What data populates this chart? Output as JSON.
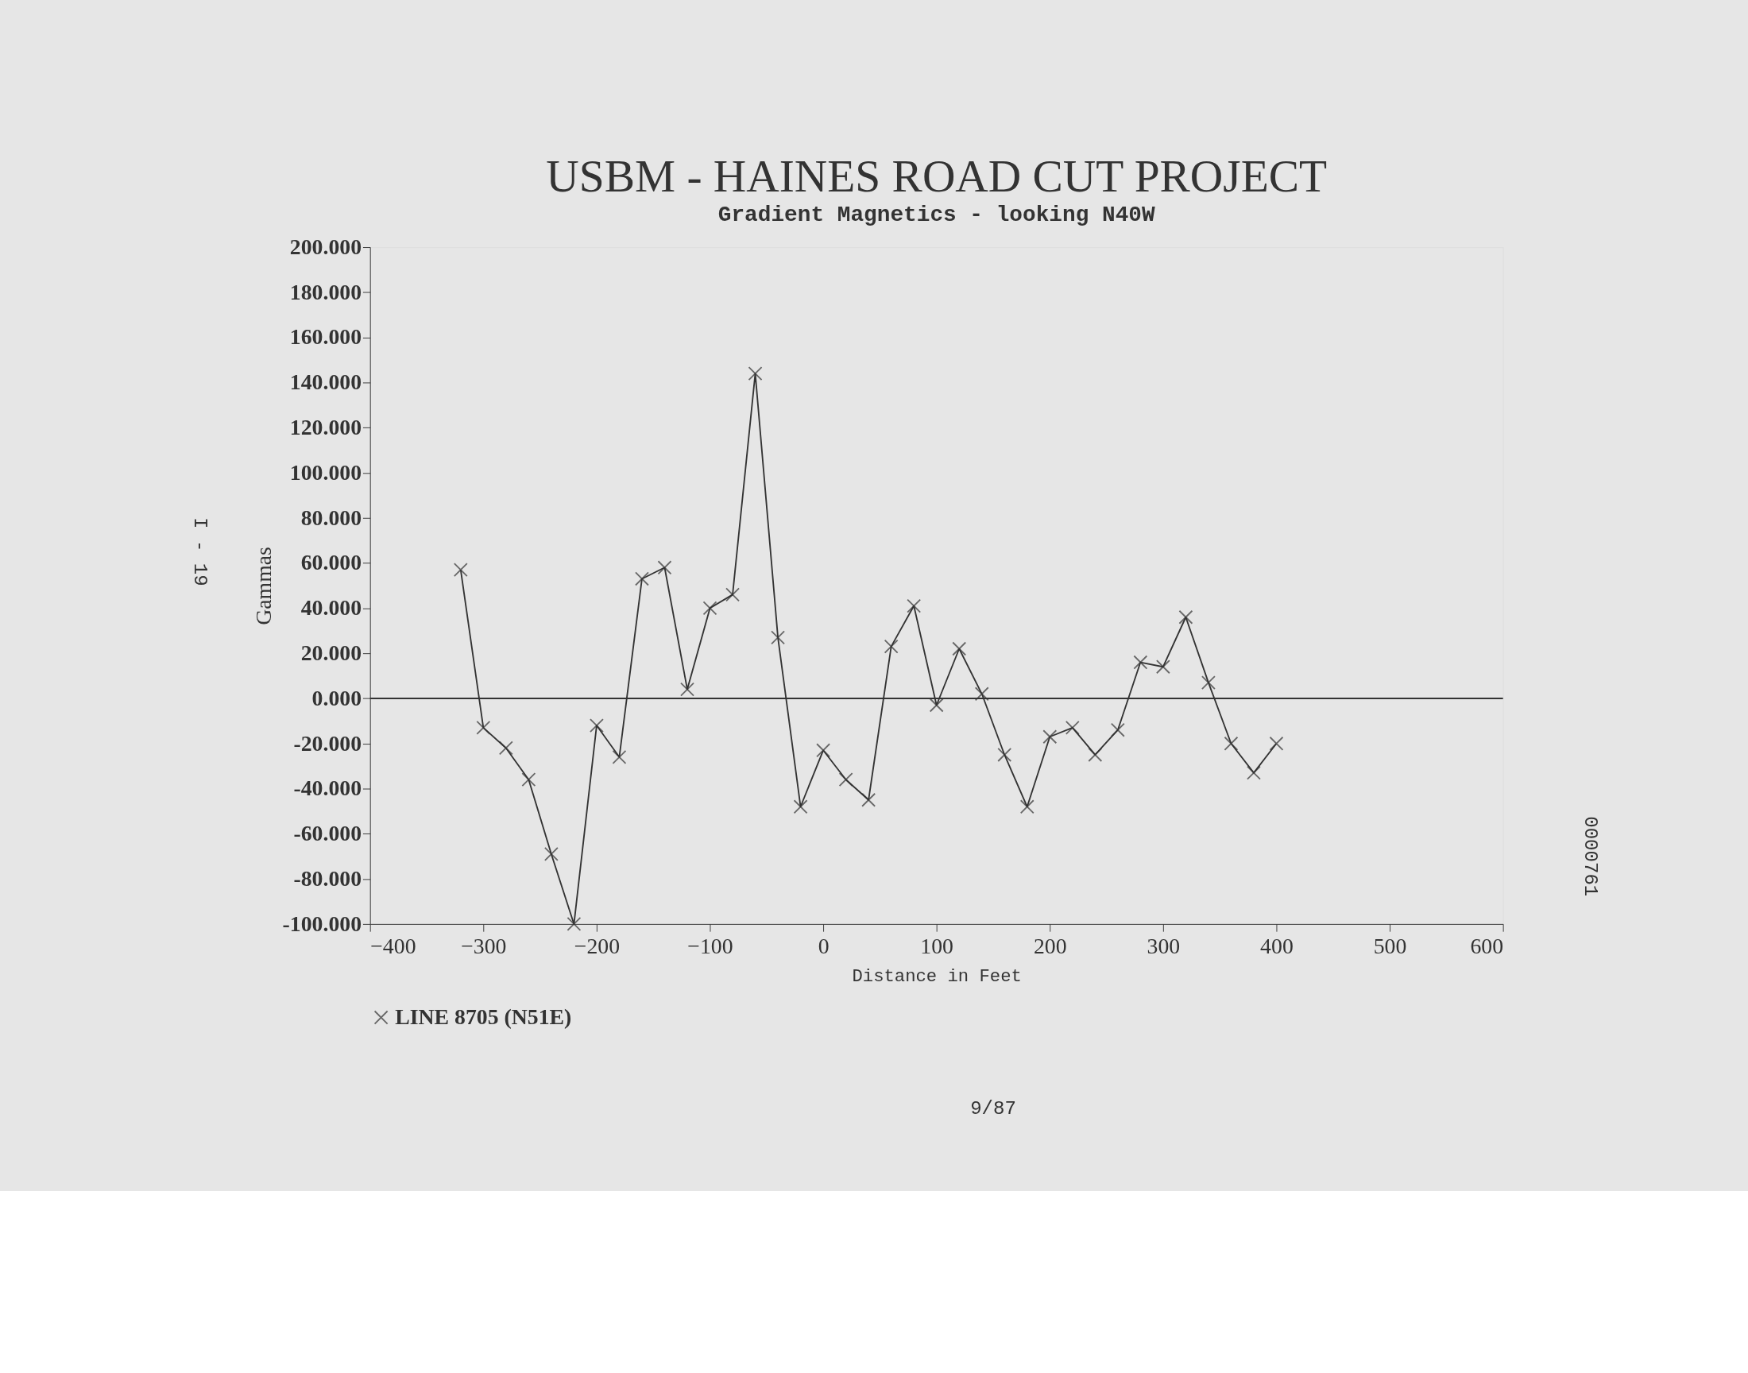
{
  "chart_data": {
    "type": "line",
    "title": "USBM - HAINES ROAD CUT PROJECT",
    "subtitle": "Gradient Magnetics - looking N40W",
    "xlabel": "Distance in Feet",
    "ylabel": "Gammas",
    "x": [
      -320,
      -300,
      -280,
      -260,
      -240,
      -220,
      -200,
      -180,
      -160,
      -140,
      -120,
      -100,
      -80,
      -60,
      -40,
      -20,
      0,
      20,
      40,
      60,
      80,
      100,
      120,
      140,
      160,
      180,
      200,
      220,
      240,
      260,
      280,
      300,
      320,
      340,
      360,
      380,
      400
    ],
    "series": [
      {
        "name": "LINE 8705 (N51E)",
        "color": "#333333",
        "values": [
          57,
          -13,
          -22,
          -36,
          -69,
          -100,
          -12,
          -26,
          53,
          58,
          4,
          40,
          46,
          144,
          27,
          -48,
          -23,
          -36,
          -45,
          23,
          41,
          -3,
          22,
          2,
          -25,
          -48,
          -17,
          -13,
          -25,
          -14,
          16,
          14,
          36,
          7,
          -20,
          -33,
          -20
        ]
      }
    ],
    "xlim": [
      -400,
      600
    ],
    "xticks": [
      -400,
      -300,
      -200,
      -100,
      0,
      100,
      200,
      300,
      400,
      500,
      600
    ],
    "ylim": [
      -100,
      200
    ],
    "yticks": [
      {
        "value": -100,
        "label": "-100.000"
      },
      {
        "value": -80,
        "label": "-80.000"
      },
      {
        "value": -60,
        "label": "-60.000"
      },
      {
        "value": -40,
        "label": "-40.000"
      },
      {
        "value": -20,
        "label": "-20.000"
      },
      {
        "value": 0,
        "label": "0.000"
      },
      {
        "value": 20,
        "label": "20.000"
      },
      {
        "value": 40,
        "label": "40.000"
      },
      {
        "value": 60,
        "label": "60.000"
      },
      {
        "value": 80,
        "label": "80.000"
      },
      {
        "value": 100,
        "label": "100.000"
      },
      {
        "value": 120,
        "label": "120.000"
      },
      {
        "value": 140,
        "label": "140.000"
      },
      {
        "value": 160,
        "label": "160.000"
      },
      {
        "value": 180,
        "label": "180.000"
      },
      {
        "value": 200,
        "label": "200.000"
      }
    ],
    "ref_lines": [
      {
        "axis": "y",
        "value": 0,
        "color": "#333333"
      }
    ],
    "grid": false,
    "legend": "bottom",
    "marker": "cross",
    "line_style": "solid",
    "annotations": [
      "9/87",
      "I - 19",
      "0000761"
    ]
  }
}
